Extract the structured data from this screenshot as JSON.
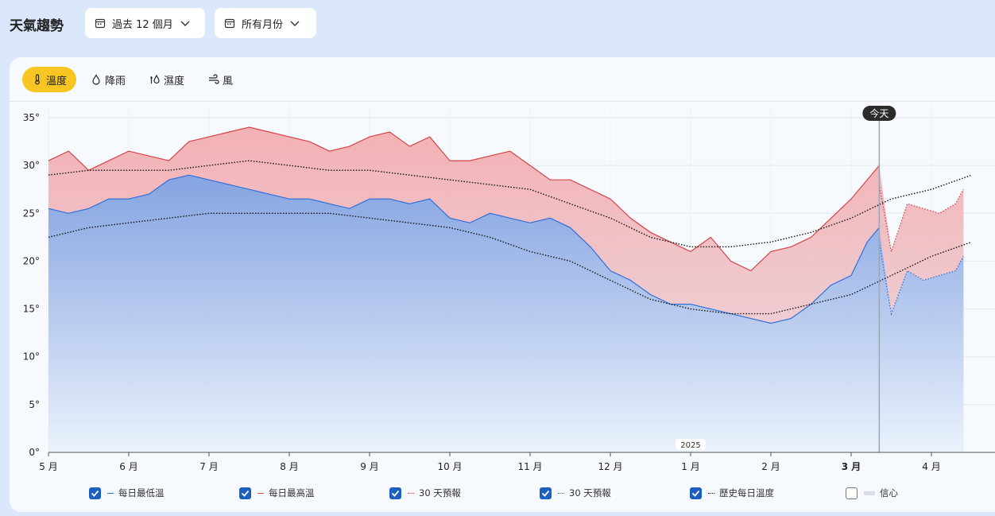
{
  "header": {
    "title": "天氣趨勢",
    "range_label": "過去 12 個月",
    "months_label": "所有月份"
  },
  "tabs": [
    {
      "label": "溫度",
      "icon": "thermometer-icon",
      "active": true
    },
    {
      "label": "降雨",
      "icon": "droplet-icon",
      "active": false
    },
    {
      "label": "濕度",
      "icon": "humidity-icon",
      "active": false
    },
    {
      "label": "風",
      "icon": "wind-icon",
      "active": false
    }
  ],
  "legend": [
    {
      "label": "每日最低溫",
      "checked": true,
      "color": "#2f6fdc",
      "style": "solid"
    },
    {
      "label": "每日最高溫",
      "checked": true,
      "color": "#d64545",
      "style": "solid"
    },
    {
      "label": "30 天預報",
      "checked": true,
      "color": "#d64545",
      "style": "dotted"
    },
    {
      "label": "30 天預報",
      "checked": true,
      "color": "#2f6fdc",
      "style": "dotted"
    },
    {
      "label": "歷史每日溫度",
      "checked": true,
      "color": "#111111",
      "style": "dotted"
    },
    {
      "label": "信心",
      "checked": false,
      "color": "#d8dde6",
      "style": "band"
    }
  ],
  "chart_data": {
    "type": "area",
    "ylim": [
      0,
      35
    ],
    "y_ticks": [
      "0°",
      "5°",
      "10°",
      "15°",
      "20°",
      "25°",
      "30°",
      "35°"
    ],
    "x_ticks": [
      "5 月",
      "6 月",
      "7 月",
      "8 月",
      "9 月",
      "10 月",
      "11 月",
      "12 月",
      "1 月",
      "2 月",
      "3 月",
      "4 月"
    ],
    "current_month": "3 月",
    "year_label": "2025",
    "today_label": "今天",
    "today_month": 10.35,
    "series": [
      {
        "name": "每日最高溫",
        "color": "#d64545",
        "x": [
          0,
          0.25,
          0.5,
          0.75,
          1,
          1.25,
          1.5,
          1.75,
          2,
          2.25,
          2.5,
          2.75,
          3,
          3.25,
          3.5,
          3.75,
          4,
          4.25,
          4.5,
          4.75,
          5,
          5.25,
          5.5,
          5.75,
          6,
          6.25,
          6.5,
          6.75,
          7,
          7.25,
          7.5,
          7.75,
          8,
          8.25,
          8.5,
          8.75,
          9,
          9.25,
          9.5,
          9.75,
          10,
          10.2,
          10.35
        ],
        "values": [
          30.5,
          31.5,
          29.5,
          30.5,
          31.5,
          31,
          30.5,
          32.5,
          33,
          33.5,
          34,
          33.5,
          33,
          32.5,
          31.5,
          32,
          33,
          33.5,
          32,
          33,
          30.5,
          30.5,
          31,
          31.5,
          30,
          28.5,
          28.5,
          27.5,
          26.5,
          24.5,
          23,
          22,
          21,
          22.5,
          20,
          19,
          21,
          21.5,
          22.5,
          24.5,
          26.5,
          28.5,
          30
        ]
      },
      {
        "name": "每日最低溫",
        "color": "#2f6fdc",
        "x": [
          0,
          0.25,
          0.5,
          0.75,
          1,
          1.25,
          1.5,
          1.75,
          2,
          2.25,
          2.5,
          2.75,
          3,
          3.25,
          3.5,
          3.75,
          4,
          4.25,
          4.5,
          4.75,
          5,
          5.25,
          5.5,
          5.75,
          6,
          6.25,
          6.5,
          6.75,
          7,
          7.25,
          7.5,
          7.75,
          8,
          8.25,
          8.5,
          8.75,
          9,
          9.25,
          9.5,
          9.75,
          10,
          10.2,
          10.35
        ],
        "values": [
          25.5,
          25,
          25.5,
          26.5,
          26.5,
          27,
          28.5,
          29,
          28.5,
          28,
          27.5,
          27,
          26.5,
          26.5,
          26,
          25.5,
          26.5,
          26.5,
          26,
          26.5,
          24.5,
          24,
          25,
          24.5,
          24,
          24.5,
          23.5,
          21.5,
          19,
          18,
          16.5,
          15.5,
          15.5,
          15,
          14.5,
          14,
          13.5,
          14,
          15.5,
          17.5,
          18.5,
          22,
          23.5
        ]
      },
      {
        "name": "30 天預報",
        "color": "#d64545",
        "style": "dotted",
        "x": [
          10.35,
          10.5,
          10.7,
          10.9,
          11.1,
          11.3,
          11.4
        ],
        "values": [
          28,
          21,
          26,
          25.5,
          25,
          26,
          27.5
        ]
      },
      {
        "name": "30 天預報",
        "color": "#2f6fdc",
        "style": "dotted",
        "x": [
          10.35,
          10.5,
          10.7,
          10.9,
          11.1,
          11.3,
          11.4
        ],
        "values": [
          22,
          14.5,
          19,
          18,
          18.5,
          19,
          20.5
        ]
      },
      {
        "name": "歷史每日溫度",
        "color": "#111111",
        "style": "dotted",
        "x": [
          0,
          0.5,
          1,
          1.5,
          2,
          2.5,
          3,
          3.5,
          4,
          4.5,
          5,
          5.5,
          6,
          6.5,
          7,
          7.5,
          8,
          8.5,
          9,
          9.5,
          10,
          10.5,
          11,
          11.5
        ],
        "values": [
          29,
          29.5,
          29.5,
          29.5,
          30,
          30.5,
          30,
          29.5,
          29.5,
          29,
          28.5,
          28,
          27.5,
          26,
          24.5,
          22.5,
          21.5,
          21.5,
          22,
          23,
          24.5,
          26.5,
          27.5,
          29
        ]
      },
      {
        "name": "歷史每日溫度",
        "color": "#111111",
        "style": "dotted",
        "x": [
          0,
          0.5,
          1,
          1.5,
          2,
          2.5,
          3,
          3.5,
          4,
          4.5,
          5,
          5.5,
          6,
          6.5,
          7,
          7.5,
          8,
          8.5,
          9,
          9.5,
          10,
          10.5,
          11,
          11.5
        ],
        "values": [
          22.5,
          23.5,
          24,
          24.5,
          25,
          25,
          25,
          25,
          24.5,
          24,
          23.5,
          22.5,
          21,
          20,
          18,
          16,
          15,
          14.5,
          14.5,
          15.5,
          16.5,
          18.5,
          20.5,
          22
        ]
      }
    ]
  }
}
